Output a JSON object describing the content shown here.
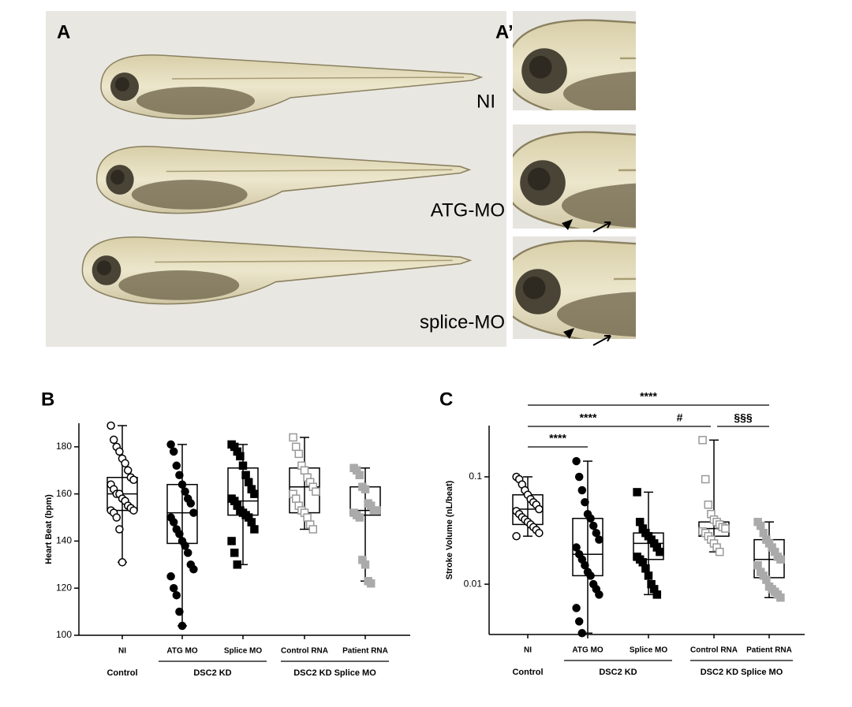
{
  "figure": {
    "panel_a": {
      "label": "A",
      "rows": [
        "NI",
        "ATG-MO",
        "splice-MO"
      ]
    },
    "panel_a_prime": {
      "label": "A’"
    }
  },
  "chart_data": [
    {
      "type": "box",
      "panel": "B",
      "y_label": "Heart Beat (bpm)",
      "log": false,
      "ylim": [
        100,
        190
      ],
      "yticks": [
        100,
        120,
        140,
        160,
        180
      ],
      "categories": [
        "NI",
        "ATG MO",
        "Splice MO",
        "Control RNA",
        "Patient RNA"
      ],
      "groups": [
        "Control",
        "DSC2 KD",
        "DSC2 KD Splice MO"
      ],
      "boxes": [
        {
          "min": 131,
          "q1": 153,
          "median": 160,
          "q3": 167,
          "max": 189,
          "marker": "circle",
          "filled": false,
          "color": "#000000",
          "points": [
            189,
            183,
            180,
            178,
            175,
            173,
            170,
            167,
            166,
            164,
            162,
            160,
            160,
            158,
            157,
            155,
            154,
            153,
            153,
            152,
            150,
            145,
            131
          ]
        },
        {
          "min": 104,
          "q1": 139,
          "median": 152,
          "q3": 164,
          "max": 181,
          "marker": "circle",
          "filled": true,
          "color": "#000000",
          "points": [
            181,
            178,
            172,
            168,
            164,
            161,
            158,
            156,
            152,
            150,
            148,
            145,
            143,
            140,
            138,
            135,
            130,
            128,
            125,
            120,
            117,
            110,
            104
          ]
        },
        {
          "min": 130,
          "q1": 151,
          "median": 157,
          "q3": 171,
          "max": 181,
          "marker": "square",
          "filled": true,
          "color": "#000000",
          "points": [
            181,
            180,
            178,
            176,
            172,
            168,
            165,
            162,
            160,
            158,
            157,
            155,
            153,
            152,
            151,
            150,
            148,
            145,
            140,
            135,
            130
          ]
        },
        {
          "min": 145,
          "q1": 152,
          "median": 163,
          "q3": 171,
          "max": 184,
          "marker": "square",
          "filled": false,
          "color": "#999999",
          "points": [
            184,
            180,
            177,
            172,
            170,
            167,
            165,
            163,
            161,
            160,
            158,
            155,
            153,
            152,
            150,
            147,
            145
          ]
        },
        {
          "min": 123,
          "q1": 151,
          "median": 153,
          "q3": 163,
          "max": 171,
          "marker": "square",
          "filled": true,
          "color": "#aaaaaa",
          "points": [
            171,
            170,
            168,
            163,
            162,
            156,
            155,
            153,
            153,
            152,
            151,
            150,
            132,
            130,
            123,
            122
          ]
        }
      ]
    },
    {
      "type": "box",
      "panel": "C",
      "y_label": "Stroke Volume (nL/beat)",
      "log": true,
      "ylim": [
        0.0034,
        0.3
      ],
      "yticks": [
        0.01,
        0.1
      ],
      "categories": [
        "NI",
        "ATG MO",
        "Splice MO",
        "Control RNA",
        "Patient RNA"
      ],
      "groups": [
        "Control",
        "DSC2 KD",
        "DSC2 KD Splice MO"
      ],
      "annotations": [
        {
          "label": "****",
          "from": "NI",
          "to": "Patient RNA"
        },
        {
          "label": "****",
          "from": "NI",
          "to": "Splice MO"
        },
        {
          "label": "#",
          "from": "Splice MO",
          "to": "Control RNA"
        },
        {
          "label": "§§§",
          "from": "Control RNA",
          "to": "Patient RNA"
        },
        {
          "label": "****",
          "from": "NI",
          "to": "ATG MO"
        }
      ],
      "boxes": [
        {
          "min": 0.028,
          "q1": 0.036,
          "median": 0.05,
          "q3": 0.068,
          "max": 0.1,
          "marker": "circle",
          "filled": false,
          "color": "#000000",
          "points": [
            0.1,
            0.095,
            0.085,
            0.075,
            0.068,
            0.062,
            0.058,
            0.055,
            0.05,
            0.048,
            0.045,
            0.042,
            0.04,
            0.038,
            0.036,
            0.034,
            0.032,
            0.03,
            0.028
          ]
        },
        {
          "min": 0.0035,
          "q1": 0.012,
          "median": 0.019,
          "q3": 0.041,
          "max": 0.14,
          "marker": "circle",
          "filled": true,
          "color": "#000000",
          "points": [
            0.14,
            0.1,
            0.075,
            0.058,
            0.045,
            0.041,
            0.035,
            0.03,
            0.026,
            0.022,
            0.019,
            0.017,
            0.015,
            0.013,
            0.012,
            0.01,
            0.009,
            0.008,
            0.006,
            0.0045,
            0.0035
          ]
        },
        {
          "min": 0.008,
          "q1": 0.017,
          "median": 0.024,
          "q3": 0.03,
          "max": 0.072,
          "marker": "square",
          "filled": true,
          "color": "#000000",
          "points": [
            0.072,
            0.038,
            0.033,
            0.03,
            0.028,
            0.026,
            0.024,
            0.022,
            0.02,
            0.018,
            0.017,
            0.016,
            0.014,
            0.012,
            0.01,
            0.009,
            0.008
          ]
        },
        {
          "min": 0.02,
          "q1": 0.028,
          "median": 0.033,
          "q3": 0.038,
          "max": 0.22,
          "marker": "square",
          "filled": false,
          "color": "#999999",
          "points": [
            0.22,
            0.095,
            0.055,
            0.045,
            0.04,
            0.038,
            0.036,
            0.034,
            0.033,
            0.031,
            0.03,
            0.028,
            0.026,
            0.024,
            0.022,
            0.02
          ]
        },
        {
          "min": 0.0075,
          "q1": 0.0115,
          "median": 0.017,
          "q3": 0.026,
          "max": 0.038,
          "marker": "square",
          "filled": true,
          "color": "#aaaaaa",
          "points": [
            0.038,
            0.035,
            0.03,
            0.026,
            0.024,
            0.022,
            0.02,
            0.018,
            0.017,
            0.015,
            0.013,
            0.012,
            0.011,
            0.0095,
            0.009,
            0.0085,
            0.008,
            0.0075
          ]
        }
      ]
    }
  ]
}
